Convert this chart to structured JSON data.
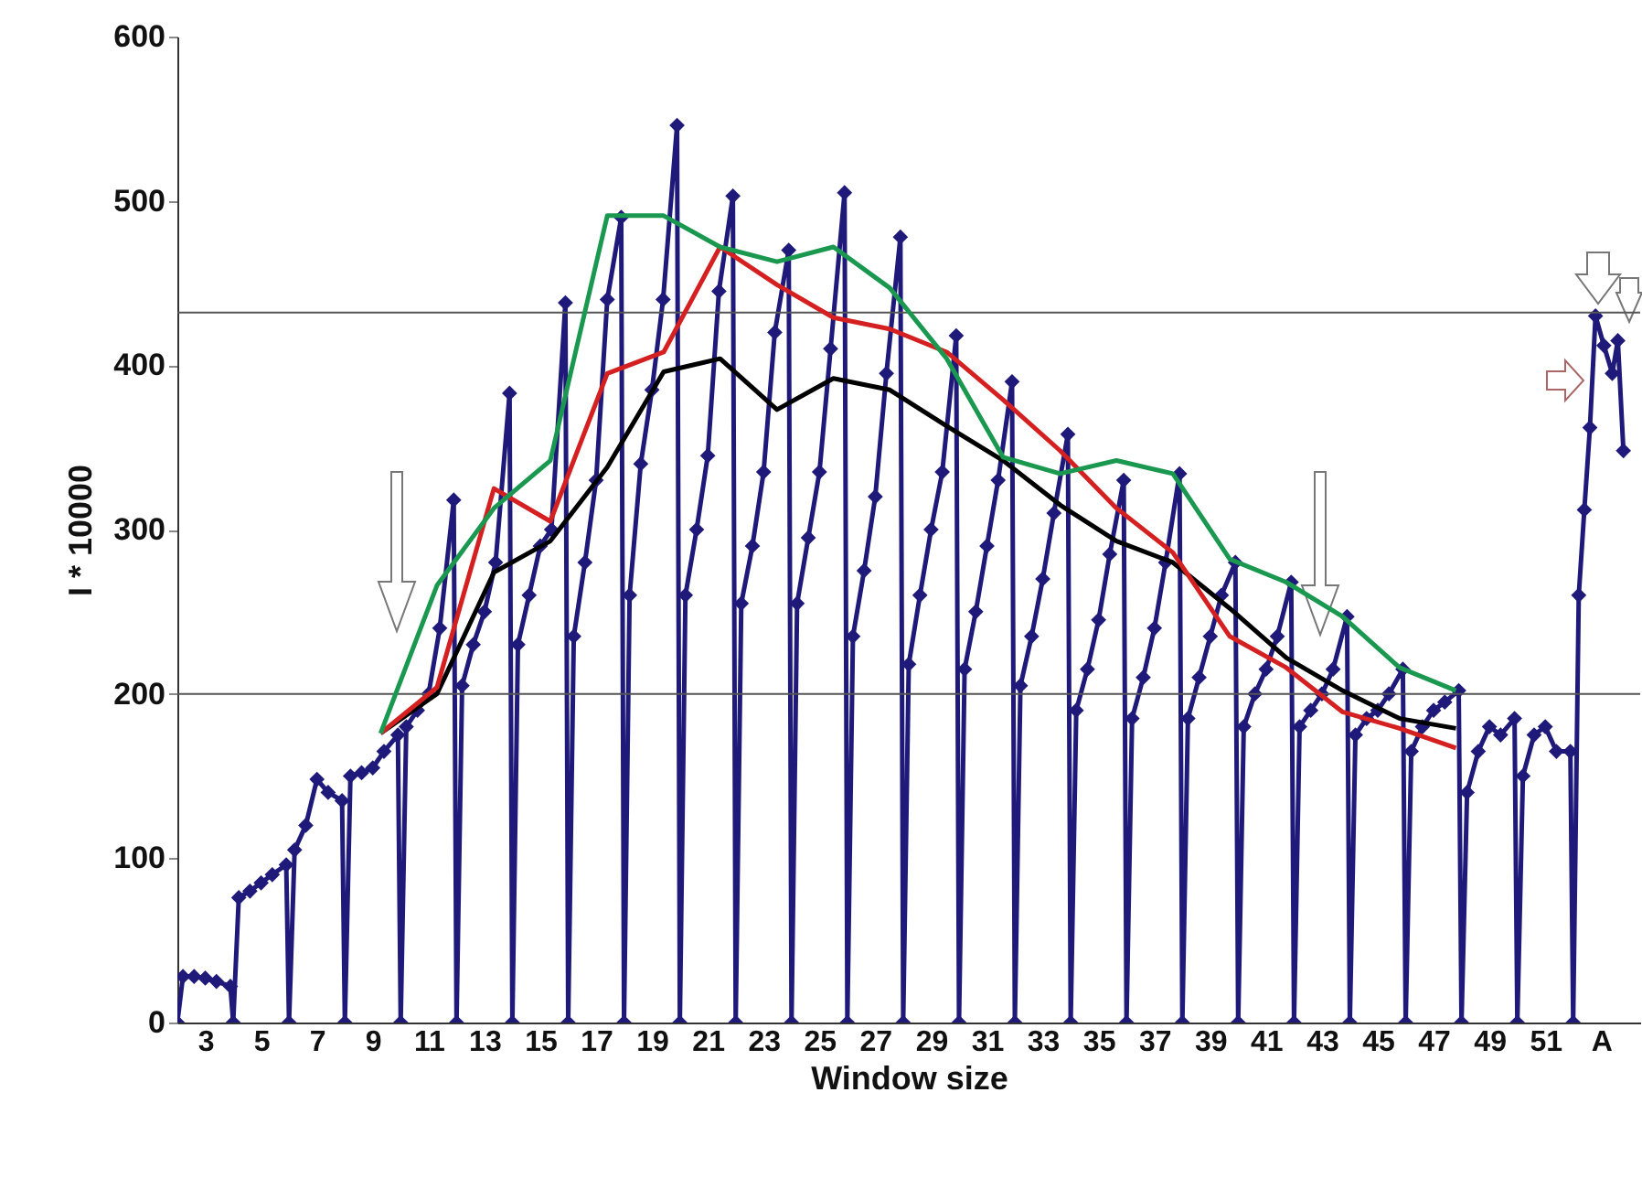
{
  "chart_data": {
    "type": "line",
    "xlabel": "Window size",
    "ylabel": "I * 10000",
    "xlim": [
      2,
      54.4
    ],
    "ylim": [
      0,
      600
    ],
    "xticks": [
      3,
      5,
      7,
      9,
      11,
      13,
      15,
      17,
      19,
      21,
      23,
      25,
      27,
      29,
      31,
      33,
      35,
      37,
      39,
      41,
      43,
      45,
      47,
      49,
      51,
      {
        "value": 53,
        "label": "A"
      }
    ],
    "yticks": [
      0,
      100,
      200,
      300,
      400,
      500,
      600
    ],
    "grid": false,
    "ref_lines": [
      {
        "axis": "y",
        "value": 432,
        "color": "#555555"
      },
      {
        "axis": "y",
        "value": 200,
        "color": "#555555"
      }
    ],
    "series": [
      {
        "color": "#1f1a7a",
        "marker": "diamond",
        "x": [
          2,
          2.2,
          2.6,
          3,
          3.4,
          3.9,
          4,
          4.2,
          4.6,
          5,
          5.4,
          5.9,
          6,
          6.2,
          6.6,
          7,
          7.4,
          7.9,
          8,
          8.2,
          8.6,
          9,
          9.4,
          9.9,
          10,
          10.2,
          10.6,
          11,
          11.4,
          11.9,
          12,
          12.2,
          12.6,
          13,
          13.4,
          13.9,
          14,
          14.2,
          14.6,
          15,
          15.4,
          15.9,
          16,
          16.2,
          16.6,
          17,
          17.4,
          17.9,
          18,
          18.2,
          18.6,
          19,
          19.4,
          19.9,
          20,
          20.2,
          20.6,
          21,
          21.4,
          21.9,
          22,
          22.2,
          22.6,
          23,
          23.4,
          23.9,
          24,
          24.2,
          24.6,
          25,
          25.4,
          25.9,
          26,
          26.2,
          26.6,
          27,
          27.4,
          27.9,
          28,
          28.2,
          28.6,
          29,
          29.4,
          29.9,
          30,
          30.2,
          30.6,
          31,
          31.4,
          31.9,
          32,
          32.2,
          32.6,
          33,
          33.4,
          33.9,
          34,
          34.2,
          34.6,
          35,
          35.4,
          35.9,
          36,
          36.2,
          36.6,
          37,
          37.4,
          37.9,
          38,
          38.2,
          38.6,
          39,
          39.4,
          39.9,
          40,
          40.2,
          40.6,
          41,
          41.4,
          41.9,
          42,
          42.2,
          42.6,
          43,
          43.4,
          43.9,
          44,
          44.2,
          44.6,
          45,
          45.4,
          45.9,
          46,
          46.2,
          46.6,
          47,
          47.4,
          47.9,
          48,
          48.2,
          48.6,
          49,
          49.4,
          49.9,
          50,
          50.2,
          50.6,
          51,
          51.4,
          51.9,
          52,
          52.2,
          52.4,
          52.6,
          52.8,
          53.1,
          53.4,
          53.6,
          53.8
        ],
        "values": [
          0,
          28,
          28,
          27,
          25,
          22,
          0,
          76,
          80,
          85,
          90,
          96,
          0,
          105,
          120,
          148,
          140,
          135,
          0,
          150,
          152,
          155,
          165,
          175,
          0,
          180,
          190,
          200,
          240,
          318,
          0,
          205,
          230,
          250,
          280,
          383,
          0,
          230,
          260,
          290,
          300,
          438,
          0,
          235,
          280,
          330,
          440,
          490,
          0,
          260,
          340,
          385,
          440,
          546,
          0,
          260,
          300,
          345,
          445,
          503,
          0,
          255,
          290,
          335,
          420,
          470,
          0,
          255,
          295,
          335,
          410,
          505,
          0,
          235,
          275,
          320,
          395,
          478,
          0,
          218,
          260,
          300,
          335,
          418,
          0,
          215,
          250,
          290,
          330,
          390,
          0,
          205,
          235,
          270,
          310,
          358,
          0,
          190,
          215,
          245,
          285,
          330,
          0,
          185,
          210,
          240,
          280,
          334,
          0,
          185,
          210,
          235,
          260,
          280,
          0,
          180,
          200,
          215,
          235,
          268,
          0,
          180,
          190,
          200,
          215,
          247,
          0,
          175,
          185,
          190,
          200,
          215,
          0,
          165,
          180,
          190,
          195,
          202,
          0,
          140,
          165,
          180,
          175,
          185,
          0,
          150,
          175,
          180,
          165,
          165,
          0,
          260,
          312,
          362,
          430,
          412,
          395,
          415,
          348
        ]
      },
      {
        "color": "#000000",
        "marker": "none",
        "x": [
          9.28,
          11.3,
          13.34,
          15.36,
          17.4,
          19.42,
          21.44,
          23.48,
          25.5,
          27.52,
          29.56,
          31.58,
          33.62,
          35.64,
          37.66,
          39.7,
          41.72,
          43.74,
          45.78,
          47.8
        ],
        "values": [
          176,
          200,
          274,
          293,
          338,
          396,
          404,
          373,
          392,
          385,
          363,
          342,
          315,
          293,
          280,
          252,
          222,
          202,
          185,
          179
        ]
      },
      {
        "color": "#d42020",
        "marker": "none",
        "x": [
          9.28,
          11.3,
          13.34,
          15.36,
          17.4,
          19.42,
          21.44,
          23.48,
          25.5,
          27.52,
          29.56,
          31.58,
          33.62,
          35.64,
          37.66,
          39.7,
          41.72,
          43.74,
          45.78,
          47.8
        ],
        "values": [
          176,
          204,
          325,
          305,
          395,
          408,
          472,
          449,
          429,
          422,
          408,
          379,
          348,
          313,
          286,
          235,
          216,
          189,
          179,
          167
        ]
      },
      {
        "color": "#1a9850",
        "marker": "none",
        "x": [
          9.28,
          11.3,
          13.34,
          15.36,
          17.4,
          19.42,
          21.44,
          23.48,
          25.5,
          27.52,
          29.56,
          31.58,
          33.62,
          35.64,
          37.66,
          39.7,
          41.72,
          43.74,
          45.78,
          47.8
        ],
        "values": [
          176,
          266,
          313,
          342,
          491,
          491,
          472,
          463,
          472,
          447,
          404,
          344,
          334,
          342,
          334,
          282,
          268,
          247,
          216,
          202
        ]
      }
    ]
  }
}
